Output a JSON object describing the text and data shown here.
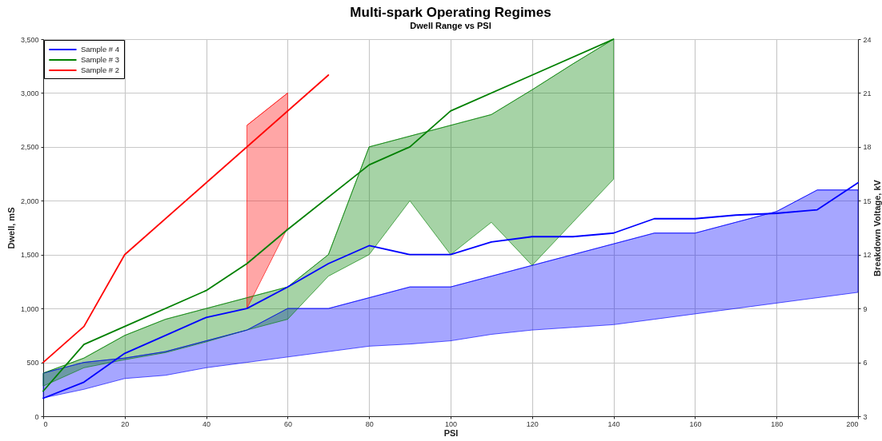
{
  "chart_data": {
    "type": "line",
    "title": "Multi-spark Operating Regimes",
    "subtitle": "Dwell Range vs PSI",
    "xlabel": "PSI",
    "ylabel": "Dwell, mS",
    "y2label": "Breakdown Voltage, kV",
    "xlim": [
      0,
      200
    ],
    "xticks": [
      0,
      20,
      40,
      60,
      80,
      100,
      120,
      140,
      160,
      180,
      200
    ],
    "ylim": [
      0,
      3500
    ],
    "yticks": [
      0,
      500,
      {
        "value": 1000,
        "label": "1,000"
      },
      {
        "value": 1500,
        "label": "1,500"
      },
      {
        "value": 2000,
        "label": "2,000"
      },
      {
        "value": 2500,
        "label": "2,500"
      },
      {
        "value": 3000,
        "label": "3,000"
      },
      {
        "value": 3500,
        "label": "3,500"
      }
    ],
    "y2lim": [
      3,
      24
    ],
    "y2ticks": [
      3,
      6,
      9,
      12,
      15,
      18,
      21,
      24
    ],
    "grid": true,
    "legend": "top left",
    "series": [
      {
        "color": "#0000ff",
        "x": [
          0,
          10,
          20,
          30,
          40,
          50,
          60,
          70,
          80,
          90,
          100,
          110,
          120,
          130,
          140,
          150,
          160,
          170,
          180,
          190,
          200
        ],
        "values": [
          400,
          500,
          540,
          600,
          700,
          800,
          1000,
          1000,
          1100,
          1200,
          1200,
          1300,
          1400,
          1500,
          1600,
          1700,
          1700,
          1800,
          1900,
          2100,
          2100
        ],
        "lower": [
          170,
          250,
          350,
          380,
          450,
          500,
          550,
          600,
          650,
          670,
          700,
          760,
          800,
          825,
          850,
          900,
          950,
          1000,
          1050,
          1100,
          1150
        ],
        "upper": [
          400,
          500,
          540,
          600,
          700,
          800,
          1000,
          1000,
          1100,
          1200,
          1200,
          1300,
          1400,
          1500,
          1600,
          1700,
          1700,
          1800,
          1900,
          2100,
          2100
        ]
      },
      {
        "color": "#008000",
        "x": [
          0,
          10,
          20,
          30,
          40,
          50,
          60,
          70,
          80,
          90,
          100,
          110,
          120,
          130,
          140
        ],
        "values": [
          400,
          540,
          750,
          900,
          1000,
          1100,
          1200,
          1500,
          2500,
          2600,
          2700,
          2800,
          3030,
          3270,
          3500
        ],
        "lower": [
          280,
          450,
          525,
          590,
          690,
          800,
          900,
          1300,
          1500,
          2000,
          1500,
          1800,
          1400,
          1800,
          2200
        ],
        "upper": [
          400,
          540,
          750,
          900,
          1000,
          1100,
          1200,
          1500,
          2500,
          2600,
          2700,
          2800,
          3030,
          3270,
          3500
        ]
      },
      {
        "color": "#ff0000",
        "x": [
          50,
          60
        ],
        "values": [
          2700,
          3000
        ],
        "lower": [
          1000,
          1750
        ],
        "upper": [
          2700,
          3000
        ]
      },
      {
        "name": "Sample # 4",
        "color": "#0000ff",
        "axis": "y2",
        "x": [
          0,
          10,
          20,
          30,
          40,
          50,
          60,
          70,
          80,
          90,
          100,
          110,
          120,
          130,
          140,
          150,
          160,
          170,
          180,
          190,
          200
        ],
        "values": [
          4,
          4.9,
          6.5,
          7.5,
          8.5,
          9,
          10.2,
          11.5,
          12.5,
          12,
          12,
          12.7,
          13,
          13,
          13.2,
          14,
          14,
          14.2,
          14.3,
          14.5,
          16
        ]
      },
      {
        "name": "Sample # 3",
        "color": "#008000",
        "axis": "y2",
        "x": [
          0,
          10,
          20,
          40,
          50,
          60,
          80,
          90,
          100,
          120,
          140
        ],
        "values": [
          4.4,
          7,
          8,
          10,
          11.5,
          13.4,
          17,
          18,
          20,
          22,
          24
        ]
      },
      {
        "name": "Sample # 2",
        "color": "#ff0000",
        "axis": "y2",
        "x": [
          0,
          10,
          20,
          70
        ],
        "values": [
          6,
          8,
          12,
          22
        ]
      }
    ]
  }
}
